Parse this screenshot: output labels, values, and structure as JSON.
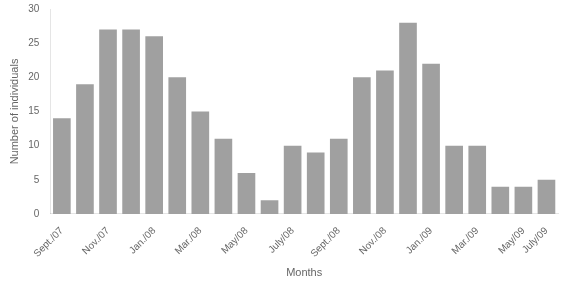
{
  "chart_data": {
    "type": "bar",
    "categories": [
      "Sept./07",
      null,
      "Nov./07",
      null,
      "Jan./08",
      null,
      "Mar./08",
      null,
      "May/08",
      null,
      "July/08",
      null,
      "Sept./08",
      null,
      "Nov./08",
      null,
      "Jan./09",
      null,
      "Mar./09",
      null,
      "May/09",
      "July/09"
    ],
    "values": [
      14,
      19,
      27,
      27,
      26,
      20,
      15,
      11,
      6,
      2,
      10,
      9,
      11,
      20,
      21,
      28,
      22,
      10,
      10,
      4,
      4,
      5
    ],
    "color": "#a0a0a0",
    "xlabel": "Months",
    "ylabel": "Number of individuals",
    "ylim": [
      0,
      30
    ],
    "yticks": [
      0,
      5,
      10,
      15,
      20,
      25,
      30
    ],
    "grid": false
  }
}
